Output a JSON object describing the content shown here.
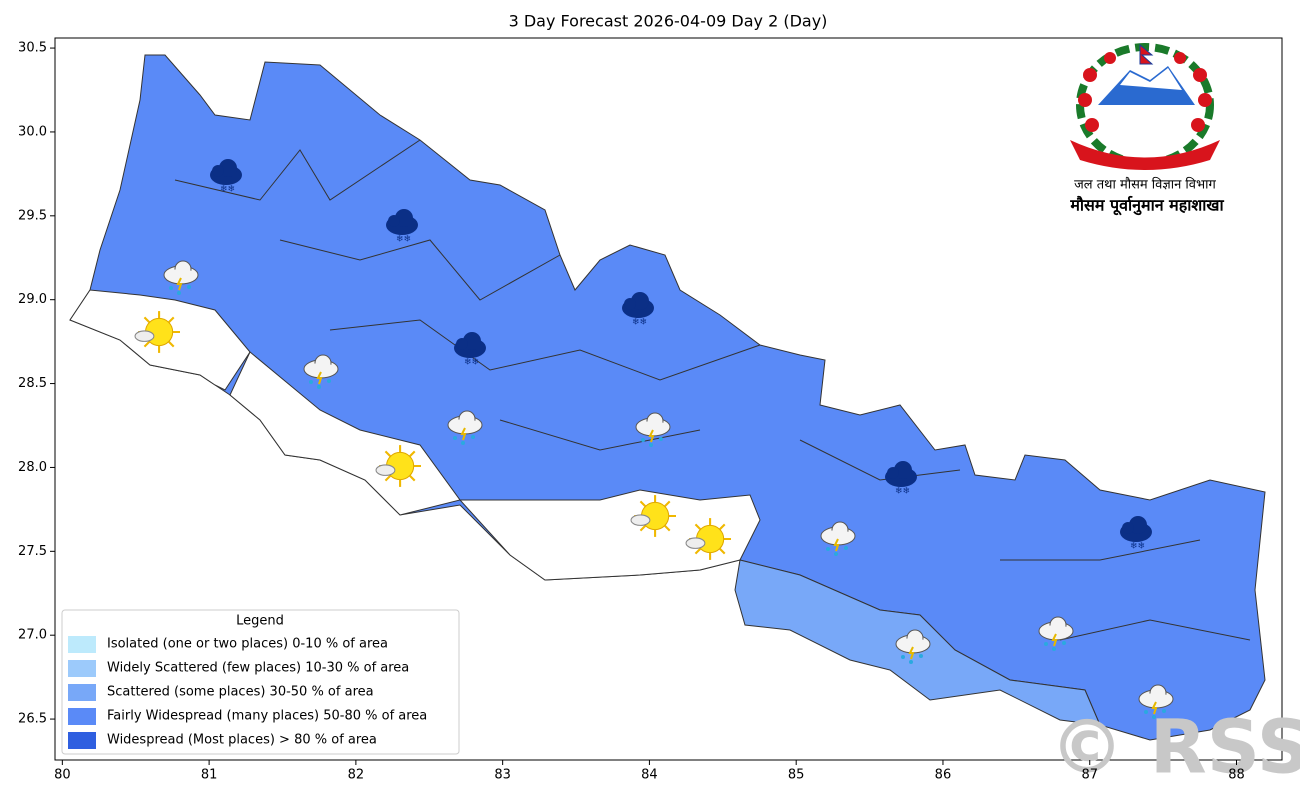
{
  "chart_data": {
    "type": "map",
    "title": "3 Day Forecast 2026-04-09 Day 2 (Day)",
    "xlim": [
      79.95,
      88.31
    ],
    "ylim": [
      26.256,
      30.56
    ],
    "xticks": [
      80,
      81,
      82,
      83,
      84,
      85,
      86,
      87,
      88
    ],
    "yticks": [
      26.5,
      {
        "value": 27,
        "label": "27.0"
      },
      27.5,
      {
        "value": 28,
        "label": "28.0"
      },
      28.5,
      {
        "value": 29,
        "label": "29.0"
      },
      29.5,
      {
        "value": 30,
        "label": "30.0"
      },
      30.5
    ],
    "legend": {
      "title": "Legend",
      "corner": "lower left",
      "items": [
        {
          "label": "Isolated (one or two places)  0-10 % of area",
          "color": "#bdeafc"
        },
        {
          "label": "Widely Scattered (few places)  10-30 % of area",
          "color": "#9ccafb"
        },
        {
          "label": "Scattered (some places)  30-50 % of area",
          "color": "#78a8f8"
        },
        {
          "label": "Fairly Widespread (many places)  50-80 % of area",
          "color": "#5a8af7"
        },
        {
          "label": "Widespread (Most places) > 80 % of area",
          "color": "#2f5fe0"
        }
      ]
    }
  },
  "organization": {
    "department": "जल तथा मौसम विज्ञान विभाग",
    "division": "मौसम पूर्वानुमान महाशाखा"
  },
  "watermark": "© RSS"
}
